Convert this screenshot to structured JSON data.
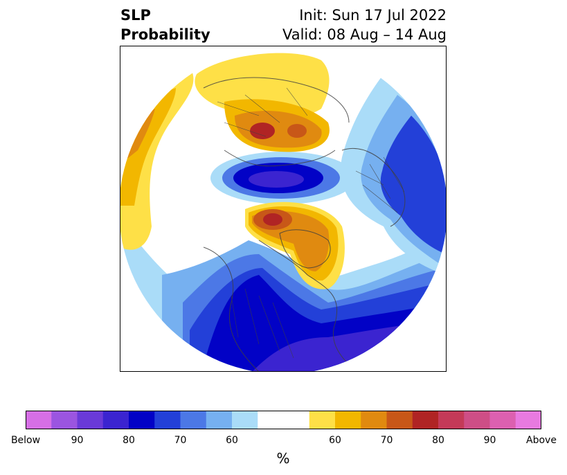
{
  "title": {
    "variable_line1": "SLP",
    "variable_line2": "Probability",
    "init": "Init: Sun 17 Jul 2022",
    "valid": "Valid: 08 Aug – 14 Aug"
  },
  "map": {
    "projection": "north-polar-stereographic",
    "background_color": "#ffffff",
    "coastline_color": "#404040"
  },
  "colorbar": {
    "unit": "%",
    "bins": [
      {
        "color": "#d66fe6",
        "meaning": "Below"
      },
      {
        "color": "#9b55e0"
      },
      {
        "color": "#6a3ad8"
      },
      {
        "color": "#3b24d0"
      },
      {
        "color": "#0202c6"
      },
      {
        "color": "#2340d8"
      },
      {
        "color": "#4c78e6"
      },
      {
        "color": "#76b0f0"
      },
      {
        "color": "#aadcf8"
      },
      {
        "color": "#ffffff"
      },
      {
        "color": "#ffffff"
      },
      {
        "color": "#fee047"
      },
      {
        "color": "#f2b700"
      },
      {
        "color": "#e08a10"
      },
      {
        "color": "#c85718"
      },
      {
        "color": "#b02424"
      },
      {
        "color": "#c43a58"
      },
      {
        "color": "#ce4e86"
      },
      {
        "color": "#dc60b0"
      },
      {
        "color": "#e87ae0",
        "meaning": "Above"
      }
    ],
    "tick_labels": [
      "Below",
      "90",
      "80",
      "70",
      "60",
      "60",
      "70",
      "80",
      "90",
      "Above"
    ]
  }
}
